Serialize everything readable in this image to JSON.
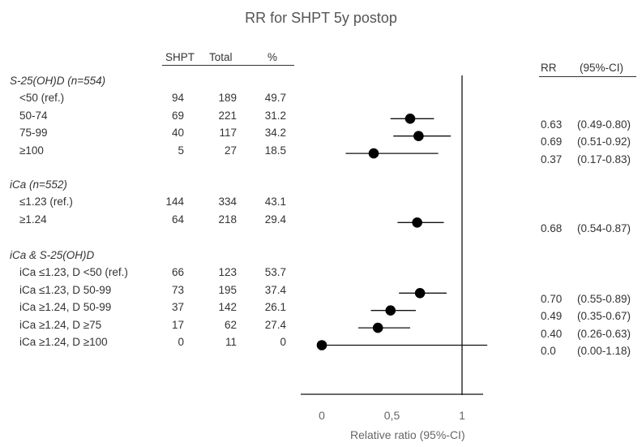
{
  "chart_data": {
    "type": "forest",
    "title": "RR for SHPT 5y postop",
    "xlabel": "Relative ratio (95%-CI)",
    "xlim": [
      0,
      1.13
    ],
    "reference_line": 1,
    "x_ticks": [
      "0",
      "0,5",
      "1"
    ],
    "columns": [
      "SHPT",
      "Total",
      "%"
    ],
    "rr_header": [
      "RR",
      "(95%-CI)"
    ],
    "sections": [
      {
        "label": "S-25(OH)D (n=554)",
        "rows": [
          {
            "label": "<50 (ref.)",
            "shpt": "94",
            "total": "189",
            "pct": "49.7",
            "rr": null,
            "lo": null,
            "hi": null,
            "rr_text": "",
            "ci_text": ""
          },
          {
            "label": "50-74",
            "shpt": "69",
            "total": "221",
            "pct": "31.2",
            "rr": 0.63,
            "lo": 0.49,
            "hi": 0.8,
            "rr_text": "0.63",
            "ci_text": "(0.49-0.80)"
          },
          {
            "label": "75-99",
            "shpt": "40",
            "total": "117",
            "pct": "34.2",
            "rr": 0.69,
            "lo": 0.51,
            "hi": 0.92,
            "rr_text": "0.69",
            "ci_text": "(0.51-0.92)"
          },
          {
            "label": "≥100",
            "shpt": "5",
            "total": "27",
            "pct": "18.5",
            "rr": 0.37,
            "lo": 0.17,
            "hi": 0.83,
            "rr_text": "0.37",
            "ci_text": "(0.17-0.83)"
          }
        ]
      },
      {
        "label": "iCa (n=552)",
        "rows": [
          {
            "label": "≤1.23 (ref.)",
            "shpt": "144",
            "total": "334",
            "pct": "43.1",
            "rr": null,
            "lo": null,
            "hi": null,
            "rr_text": "",
            "ci_text": ""
          },
          {
            "label": "≥1.24",
            "shpt": "64",
            "total": "218",
            "pct": "29.4",
            "rr": 0.68,
            "lo": 0.54,
            "hi": 0.87,
            "rr_text": "0.68",
            "ci_text": "(0.54-0.87)"
          }
        ]
      },
      {
        "label": "iCa & S-25(OH)D",
        "rows": [
          {
            "label": "iCa ≤1.23, D <50 (ref.)",
            "shpt": "66",
            "total": "123",
            "pct": "53.7",
            "rr": null,
            "lo": null,
            "hi": null,
            "rr_text": "",
            "ci_text": ""
          },
          {
            "label": "iCa ≤1.23, D 50-99",
            "shpt": "73",
            "total": "195",
            "pct": "37.4",
            "rr": 0.7,
            "lo": 0.55,
            "hi": 0.89,
            "rr_text": "0.70",
            "ci_text": "(0.55-0.89)"
          },
          {
            "label": "iCa ≥1.24, D 50-99",
            "shpt": "37",
            "total": "142",
            "pct": "26.1",
            "rr": 0.49,
            "lo": 0.35,
            "hi": 0.67,
            "rr_text": "0.49",
            "ci_text": "(0.35-0.67)"
          },
          {
            "label": "iCa ≥1.24, D ≥75",
            "shpt": "17",
            "total": "62",
            "pct": "27.4",
            "rr": 0.4,
            "lo": 0.26,
            "hi": 0.63,
            "rr_text": "0.40",
            "ci_text": "(0.26-0.63)"
          },
          {
            "label": "iCa ≥1.24, D ≥100",
            "shpt": "0",
            "total": "11",
            "pct": "0",
            "rr": 0.0,
            "lo": 0.0,
            "hi": 1.18,
            "rr_text": "0.0",
            "ci_text": "(0.00-1.18)"
          }
        ]
      }
    ]
  }
}
